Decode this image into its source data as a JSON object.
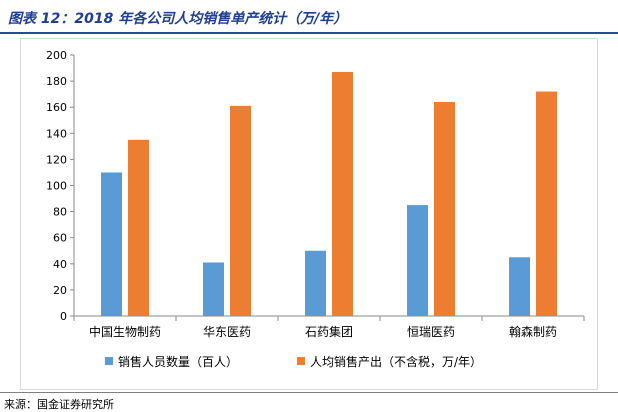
{
  "header": {
    "title": "图表 12：2018 年各公司人均销售单产统计（万/年）"
  },
  "footer": {
    "source": "来源：国金证券研究所"
  },
  "colors": {
    "series1": "#5b9bd5",
    "series2": "#ed7d31",
    "axis": "#888888",
    "title": "#1f3f8f"
  },
  "chart_data": {
    "type": "bar",
    "title": "2018 年各公司人均销售单产统计（万/年）",
    "categories": [
      "中国生物制药",
      "华东医药",
      "石药集团",
      "恒瑞医药",
      "翰森制药"
    ],
    "series": [
      {
        "name": "销售人员数量（百人）",
        "values": [
          110,
          41,
          50,
          85,
          45
        ]
      },
      {
        "name": "人均销售产出（不含税，万/年）",
        "values": [
          135,
          161,
          187,
          164,
          172
        ]
      }
    ],
    "yticks": [
      0,
      20,
      40,
      60,
      80,
      100,
      120,
      140,
      160,
      180,
      200
    ],
    "ylim": [
      0,
      200
    ],
    "xlabel": "",
    "ylabel": "",
    "grid": false,
    "legend": "bottom"
  }
}
